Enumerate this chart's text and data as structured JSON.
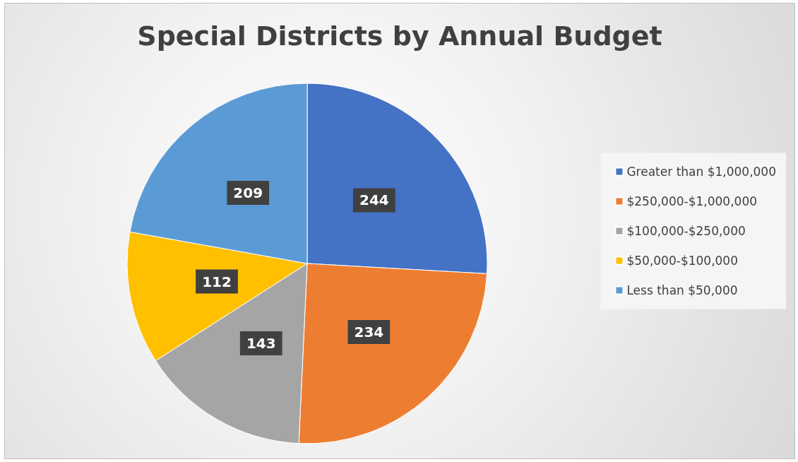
{
  "chart_data": {
    "type": "pie",
    "title": "Special Districts by Annual Budget",
    "categories": [
      "Greater than $1,000,000",
      "$250,000-$1,000,000",
      "$100,000-$250,000",
      "$50,000-$100,000",
      "Less than $50,000"
    ],
    "values": [
      244,
      234,
      143,
      112,
      209
    ],
    "colors": [
      "#4472c4",
      "#ed7d31",
      "#a5a5a5",
      "#ffc000",
      "#5b9bd5"
    ],
    "data_labels": true,
    "legend": "right"
  }
}
